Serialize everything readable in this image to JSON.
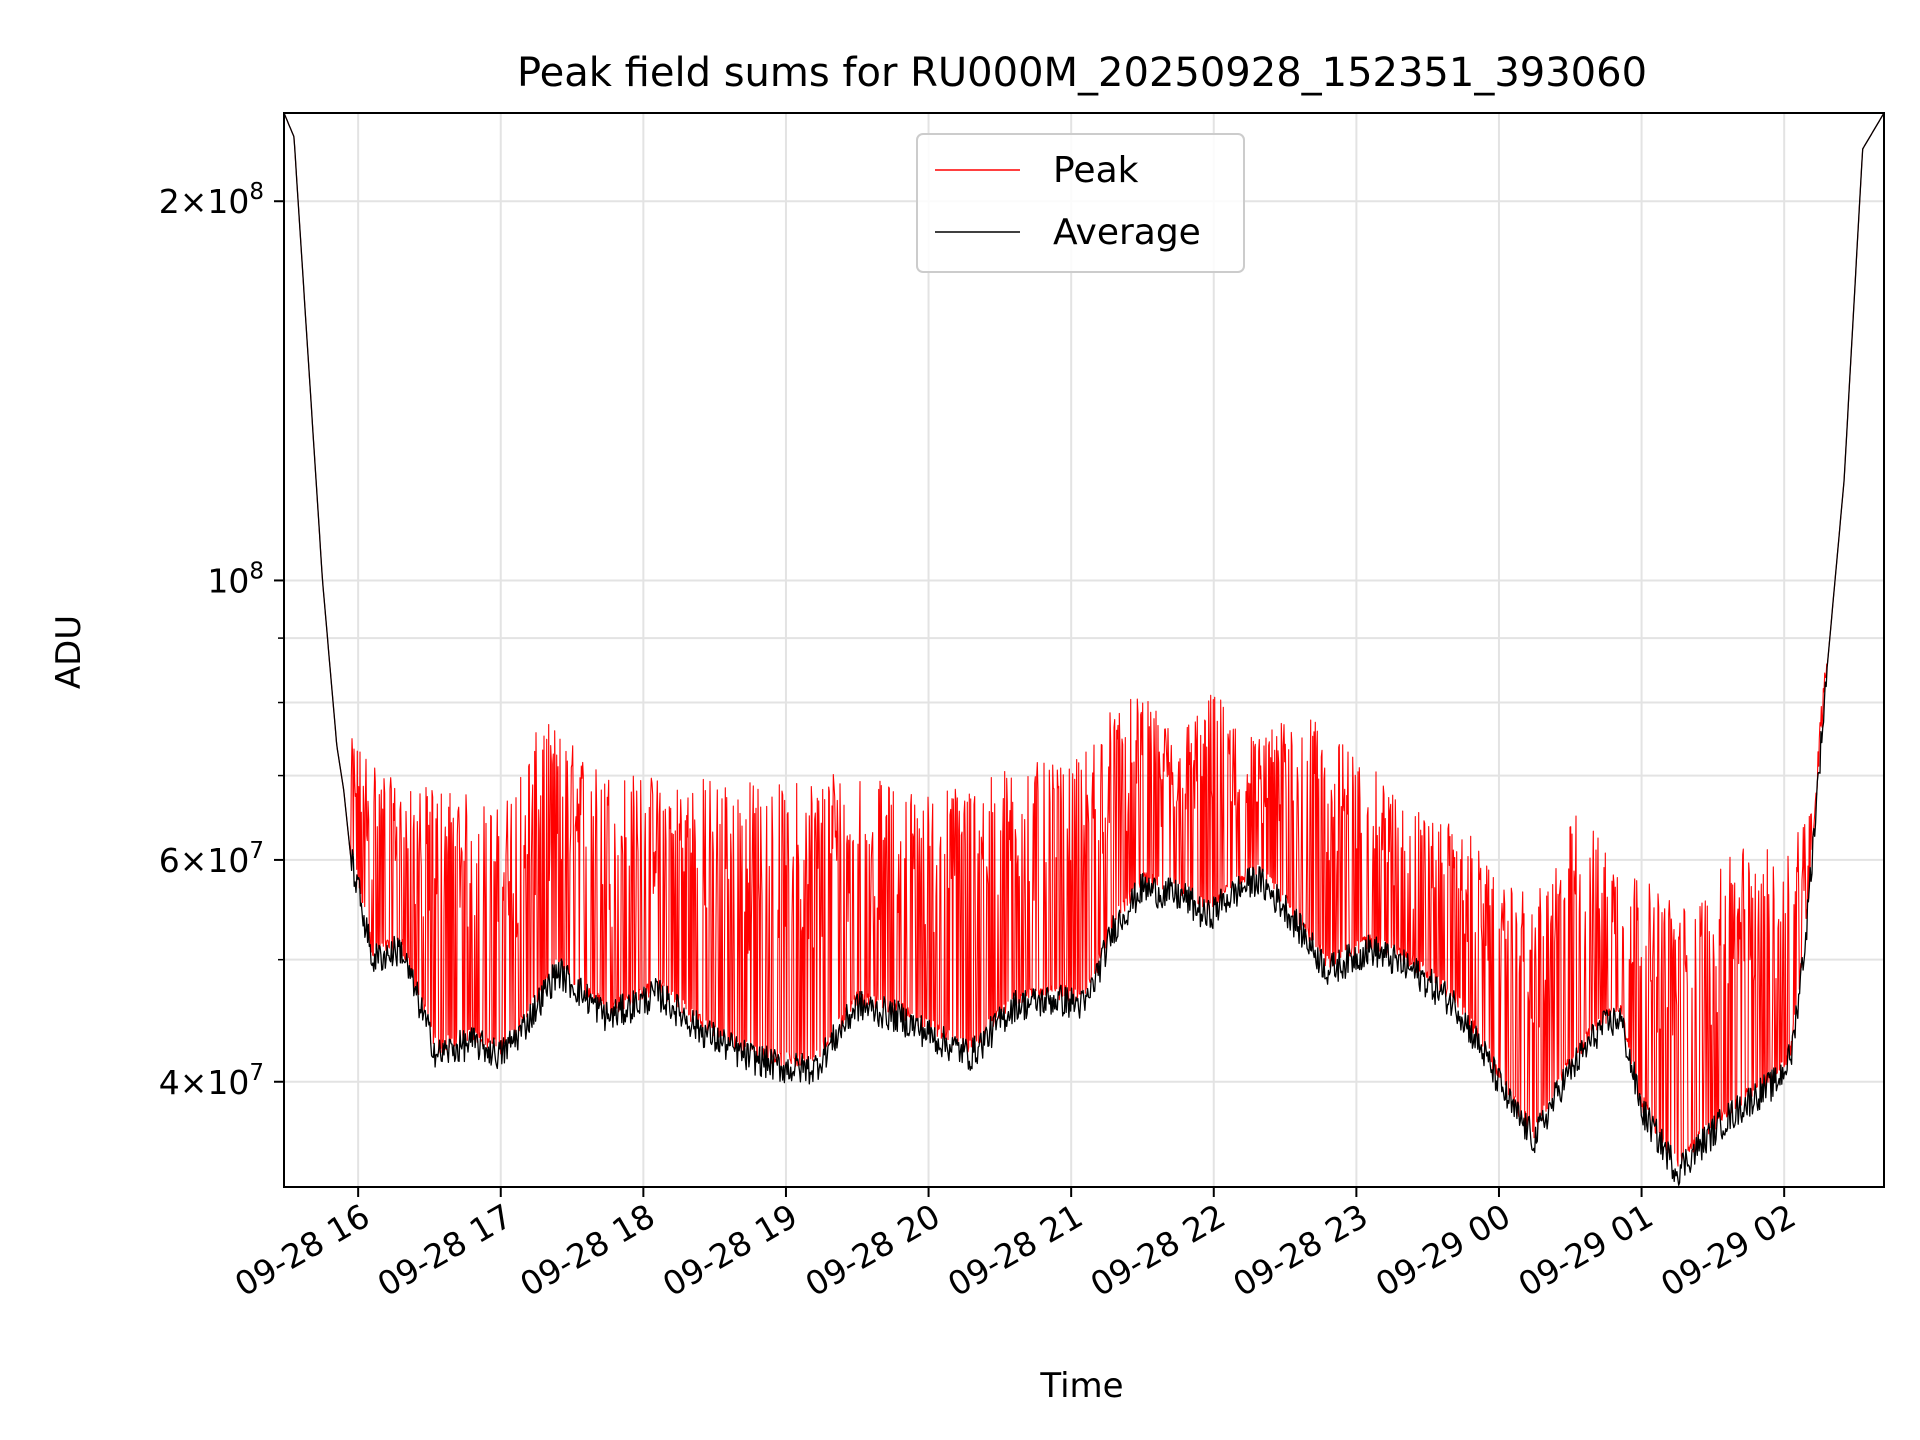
{
  "chart_data": {
    "type": "line",
    "title": "Peak field sums for RU000M_20250928_152351_393060",
    "xlabel": "Time",
    "ylabel": "ADU",
    "yscale": "log",
    "grid": true,
    "legend_position": "top-center",
    "xlim_hours": [
      -0.52,
      10.7
    ],
    "ylim": [
      33000000,
      235000000
    ],
    "x_ticks": [
      {
        "hours": 0,
        "label": "09-28 16"
      },
      {
        "hours": 1,
        "label": "09-28 17"
      },
      {
        "hours": 2,
        "label": "09-28 18"
      },
      {
        "hours": 3,
        "label": "09-28 19"
      },
      {
        "hours": 4,
        "label": "09-28 20"
      },
      {
        "hours": 5,
        "label": "09-28 21"
      },
      {
        "hours": 6,
        "label": "09-28 22"
      },
      {
        "hours": 7,
        "label": "09-28 23"
      },
      {
        "hours": 8,
        "label": "09-29 00"
      },
      {
        "hours": 9,
        "label": "09-29 01"
      },
      {
        "hours": 10,
        "label": "09-29 02"
      }
    ],
    "y_ticks": [
      {
        "value": 40000000,
        "mantissa": "4",
        "exponent": "7"
      },
      {
        "value": 60000000,
        "mantissa": "6",
        "exponent": "7"
      },
      {
        "value": 100000000,
        "mantissa": "",
        "exponent": "8"
      },
      {
        "value": 200000000,
        "mantissa": "2",
        "exponent": "8"
      }
    ],
    "y_minor_gridlines": [
      50000000,
      70000000,
      80000000,
      90000000
    ],
    "series": [
      {
        "name": "Peak",
        "color": "#ff0000",
        "x_hours": [
          -0.52,
          -0.45,
          -0.35,
          -0.25,
          -0.15,
          -0.1,
          -0.05,
          0.1,
          0.3,
          0.6,
          1.0,
          1.3,
          1.7,
          2.1,
          2.5,
          3.0,
          3.4,
          3.7,
          4.0,
          4.35,
          4.7,
          5.0,
          5.3,
          5.5,
          5.75,
          6.0,
          6.3,
          6.6,
          7.0,
          7.4,
          7.8,
          8.0,
          8.3,
          8.55,
          8.85,
          9.1,
          9.35,
          9.7,
          9.95,
          10.05,
          10.2,
          10.3,
          10.42,
          10.55,
          10.7
        ],
        "base_values": [
          235000000,
          225000000,
          150000000,
          100000000,
          74000000,
          68000000,
          62000000,
          60000000,
          59000000,
          56000000,
          55000000,
          58000000,
          57000000,
          58000000,
          57000000,
          56000000,
          57000000,
          57000000,
          56000000,
          55000000,
          57000000,
          58000000,
          62000000,
          70000000,
          69000000,
          68000000,
          68000000,
          65000000,
          62000000,
          58000000,
          55000000,
          52000000,
          49000000,
          52000000,
          52000000,
          50000000,
          48000000,
          49000000,
          50000000,
          52000000,
          63000000,
          85000000,
          120000000,
          220000000,
          235000000
        ],
        "spike_max": [
          235000000,
          225000000,
          150000000,
          100000000,
          89000000,
          86000000,
          75000000,
          73000000,
          68000000,
          69000000,
          66000000,
          78000000,
          71000000,
          70000000,
          70000000,
          69000000,
          72000000,
          69000000,
          68000000,
          70000000,
          72000000,
          71000000,
          80000000,
          81000000,
          76000000,
          82000000,
          75000000,
          79000000,
          73000000,
          66000000,
          63000000,
          57000000,
          57000000,
          66000000,
          60000000,
          57000000,
          55000000,
          62000000,
          61000000,
          63000000,
          67000000,
          89000000,
          120000000,
          220000000,
          235000000
        ]
      },
      {
        "name": "Average",
        "color": "#000000",
        "x_hours": [
          -0.52,
          -0.45,
          -0.35,
          -0.25,
          -0.15,
          -0.1,
          -0.05,
          0.0,
          0.1,
          0.3,
          0.55,
          0.8,
          1.0,
          1.15,
          1.4,
          1.75,
          2.1,
          2.4,
          2.7,
          3.0,
          3.2,
          3.5,
          3.8,
          4.1,
          4.3,
          4.6,
          4.9,
          5.1,
          5.3,
          5.5,
          5.8,
          5.95,
          6.1,
          6.3,
          6.5,
          6.8,
          7.1,
          7.4,
          7.7,
          7.9,
          8.1,
          8.25,
          8.45,
          8.7,
          8.85,
          9.0,
          9.25,
          9.55,
          9.8,
          9.95,
          10.05,
          10.15,
          10.3,
          10.42,
          10.55,
          10.7
        ],
        "values": [
          235000000,
          225000000,
          150000000,
          100000000,
          74000000,
          68000000,
          60000000,
          57000000,
          50000000,
          51000000,
          42000000,
          43000000,
          42000000,
          44000000,
          49000000,
          45000000,
          47000000,
          44000000,
          42000000,
          41000000,
          41000000,
          46000000,
          45000000,
          43000000,
          42000000,
          46000000,
          46500000,
          46000000,
          53000000,
          57000000,
          56000000,
          54000000,
          56000000,
          58000000,
          55000000,
          49000000,
          51000000,
          49000000,
          46000000,
          42000000,
          38000000,
          36000000,
          40000000,
          44000000,
          45000000,
          38000000,
          34000000,
          37000000,
          39000000,
          40000000,
          42000000,
          52000000,
          85000000,
          120000000,
          220000000,
          235000000
        ]
      }
    ]
  }
}
